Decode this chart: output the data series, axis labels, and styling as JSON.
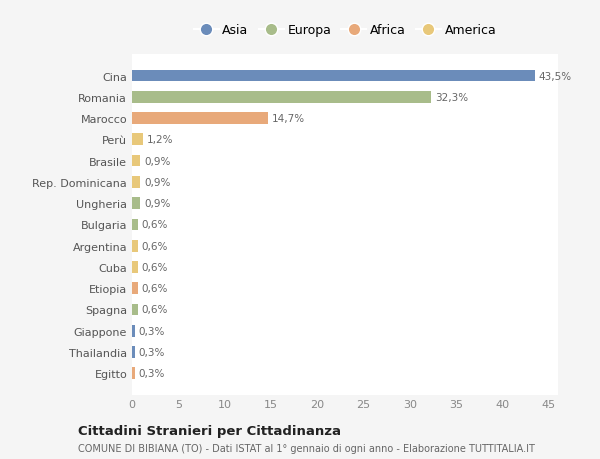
{
  "categories": [
    "Cina",
    "Romania",
    "Marocco",
    "Perù",
    "Brasile",
    "Rep. Dominicana",
    "Ungheria",
    "Bulgaria",
    "Argentina",
    "Cuba",
    "Etiopia",
    "Spagna",
    "Giappone",
    "Thailandia",
    "Egitto"
  ],
  "values": [
    43.5,
    32.3,
    14.7,
    1.2,
    0.9,
    0.9,
    0.9,
    0.6,
    0.6,
    0.6,
    0.6,
    0.6,
    0.3,
    0.3,
    0.3
  ],
  "labels": [
    "43,5%",
    "32,3%",
    "14,7%",
    "1,2%",
    "0,9%",
    "0,9%",
    "0,9%",
    "0,6%",
    "0,6%",
    "0,6%",
    "0,6%",
    "0,6%",
    "0,3%",
    "0,3%",
    "0,3%"
  ],
  "colors": [
    "#6b8cba",
    "#a8bc8a",
    "#e8a97a",
    "#e8c87a",
    "#e8c87a",
    "#e8c87a",
    "#a8bc8a",
    "#a8bc8a",
    "#e8c87a",
    "#e8c87a",
    "#e8a97a",
    "#a8bc8a",
    "#6b8cba",
    "#6b8cba",
    "#e8a97a"
  ],
  "legend_labels": [
    "Asia",
    "Europa",
    "Africa",
    "America"
  ],
  "legend_colors": [
    "#6b8cba",
    "#a8bc8a",
    "#e8a97a",
    "#e8c87a"
  ],
  "title": "Cittadini Stranieri per Cittadinanza",
  "subtitle": "COMUNE DI BIBIANA (TO) - Dati ISTAT al 1° gennaio di ogni anno - Elaborazione TUTTITALIA.IT",
  "xlim": [
    0,
    46
  ],
  "xticks": [
    0,
    5,
    10,
    15,
    20,
    25,
    30,
    35,
    40,
    45
  ],
  "background_color": "#f5f5f5",
  "plot_bg_color": "#ffffff",
  "grid_color": "#ffffff",
  "bar_height": 0.55
}
